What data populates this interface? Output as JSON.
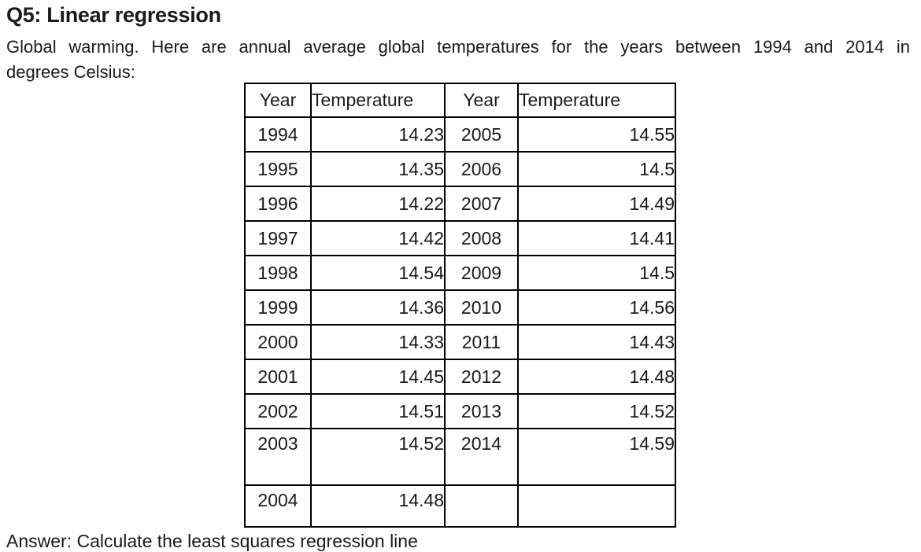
{
  "page": {
    "title": "Q5: Linear regression",
    "intro_line1": "Global warming. Here are annual average global temperatures for the years between 1994 and 2014 in",
    "intro_line2": "degrees Celsius:",
    "footer_clipped_text": "Answer: Calculate the least squares regression line"
  },
  "table": {
    "headers": [
      "Year",
      "Temperature",
      "Year",
      "Temperature"
    ],
    "rows": [
      {
        "y1": "1994",
        "t1": "14.23",
        "y2": "2005",
        "t2": "14.55"
      },
      {
        "y1": "1995",
        "t1": "14.35",
        "y2": "2006",
        "t2": "14.5"
      },
      {
        "y1": "1996",
        "t1": "14.22",
        "y2": "2007",
        "t2": "14.49"
      },
      {
        "y1": "1997",
        "t1": "14.42",
        "y2": "2008",
        "t2": "14.41"
      },
      {
        "y1": "1998",
        "t1": "14.54",
        "y2": "2009",
        "t2": "14.5"
      },
      {
        "y1": "1999",
        "t1": "14.36",
        "y2": "2010",
        "t2": "14.56"
      },
      {
        "y1": "2000",
        "t1": "14.33",
        "y2": "2011",
        "t2": "14.43"
      },
      {
        "y1": "2001",
        "t1": "14.45",
        "y2": "2012",
        "t2": "14.48"
      },
      {
        "y1": "2002",
        "t1": "14.51",
        "y2": "2013",
        "t2": "14.52"
      },
      {
        "y1": "2003",
        "t1": "14.52",
        "y2": "2014",
        "t2": "14.59"
      },
      {
        "y1": "2004",
        "t1": "14.48",
        "y2": "",
        "t2": ""
      }
    ]
  },
  "colors": {
    "text": "#1a1a1a",
    "border": "#000000",
    "background": "#ffffff"
  }
}
